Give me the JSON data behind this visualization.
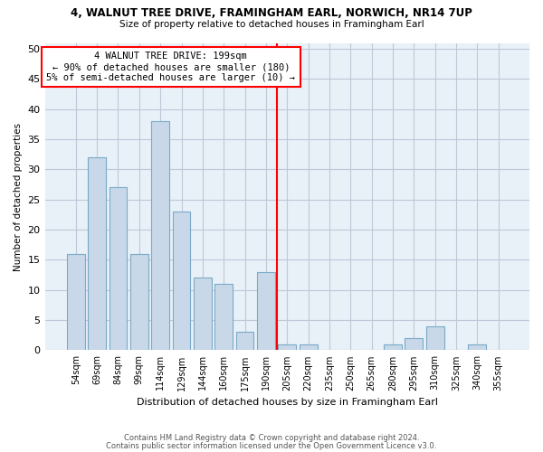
{
  "title1": "4, WALNUT TREE DRIVE, FRAMINGHAM EARL, NORWICH, NR14 7UP",
  "title2": "Size of property relative to detached houses in Framingham Earl",
  "xlabel": "Distribution of detached houses by size in Framingham Earl",
  "ylabel": "Number of detached properties",
  "footer1": "Contains HM Land Registry data © Crown copyright and database right 2024.",
  "footer2": "Contains public sector information licensed under the Open Government Licence v3.0.",
  "categories": [
    "54sqm",
    "69sqm",
    "84sqm",
    "99sqm",
    "114sqm",
    "129sqm",
    "144sqm",
    "160sqm",
    "175sqm",
    "190sqm",
    "205sqm",
    "220sqm",
    "235sqm",
    "250sqm",
    "265sqm",
    "280sqm",
    "295sqm",
    "310sqm",
    "325sqm",
    "340sqm",
    "355sqm"
  ],
  "values": [
    16,
    32,
    27,
    16,
    38,
    23,
    12,
    11,
    3,
    13,
    1,
    1,
    0,
    0,
    0,
    1,
    2,
    4,
    0,
    1,
    0
  ],
  "bar_color": "#c8d8e8",
  "bar_edge_color": "#7aaac8",
  "grid_color": "#c0c8d8",
  "background_color": "#e8f0f8",
  "vline_color": "red",
  "annotation_line1": "4 WALNUT TREE DRIVE: 199sqm",
  "annotation_line2": "← 90% of detached houses are smaller (180)",
  "annotation_line3": "5% of semi-detached houses are larger (10) →",
  "ylim": [
    0,
    51
  ],
  "yticks": [
    0,
    5,
    10,
    15,
    20,
    25,
    30,
    35,
    40,
    45,
    50
  ],
  "vline_bar_index": 9
}
